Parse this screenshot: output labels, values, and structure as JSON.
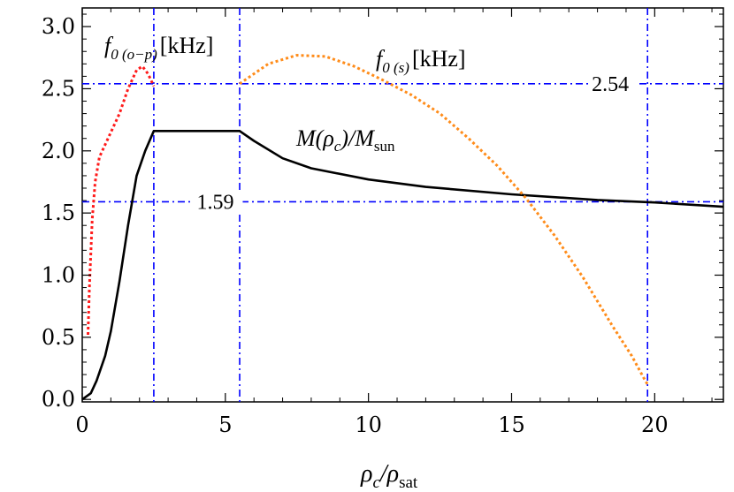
{
  "chart_data": {
    "type": "line",
    "xlabel": "ρc/ρsat",
    "ylabel": "",
    "xlim": [
      0,
      22.4
    ],
    "ylim": [
      -0.02,
      3.15
    ],
    "x_ticks": [
      0,
      5,
      10,
      15,
      20
    ],
    "x_tick_labels": [
      "0",
      "5",
      "10",
      "15",
      "20"
    ],
    "y_ticks": [
      0.0,
      0.5,
      1.0,
      1.5,
      2.0,
      2.5,
      3.0
    ],
    "y_tick_labels": [
      "0.0",
      "0.5",
      "1.0",
      "1.5",
      "2.0",
      "2.5",
      "3.0"
    ],
    "grid": false,
    "series": [
      {
        "name": "M(ρc)/Msun",
        "color": "#000000",
        "style": "solid",
        "x": [
          0.0,
          0.3,
          0.5,
          0.8,
          1.0,
          1.3,
          1.6,
          1.9,
          2.2,
          2.5,
          3.0,
          4.0,
          5.0,
          5.5,
          6.0,
          7.0,
          8.0,
          10.0,
          12.0,
          15.0,
          18.0,
          20.0,
          22.4
        ],
        "y": [
          0.0,
          0.05,
          0.15,
          0.35,
          0.55,
          0.95,
          1.4,
          1.8,
          2.0,
          2.16,
          2.16,
          2.16,
          2.16,
          2.16,
          2.08,
          1.94,
          1.86,
          1.77,
          1.71,
          1.65,
          1.605,
          1.585,
          1.55
        ]
      },
      {
        "name": "f0(o−p) [kHz]",
        "color": "#ff1a1a",
        "style": "dotted",
        "x": [
          0.2,
          0.25,
          0.35,
          0.45,
          0.6,
          0.8,
          1.0,
          1.3,
          1.6,
          1.9,
          2.1,
          2.3,
          2.5
        ],
        "y": [
          0.52,
          0.9,
          1.45,
          1.75,
          1.95,
          2.05,
          2.15,
          2.3,
          2.5,
          2.65,
          2.68,
          2.62,
          2.52
        ]
      },
      {
        "name": "f0(s) [kHz]",
        "color": "#ff8c1a",
        "style": "dotted",
        "x": [
          5.5,
          6.5,
          7.5,
          8.5,
          9.5,
          10.5,
          11.5,
          12.5,
          13.5,
          14.5,
          15.5,
          16.5,
          17.5,
          18.5,
          19.2,
          19.6,
          19.75
        ],
        "y": [
          2.54,
          2.7,
          2.77,
          2.76,
          2.68,
          2.57,
          2.45,
          2.3,
          2.1,
          1.88,
          1.62,
          1.32,
          0.98,
          0.6,
          0.35,
          0.18,
          0.12
        ]
      }
    ],
    "reference_lines": {
      "color": "#0000ff",
      "style": "dash-dot",
      "vertical_x": [
        2.5,
        5.5,
        19.75
      ],
      "horizontal_y": [
        2.54,
        1.59
      ]
    },
    "annotations": [
      {
        "text": "2.54",
        "x": 17.8,
        "y": 2.54
      },
      {
        "text": "1.59",
        "x": 4.0,
        "y": 1.59
      }
    ],
    "labels": {
      "f_op": {
        "base": "f",
        "sub": "0 (o−p)",
        "unit": "[kHz]"
      },
      "f_s": {
        "base": "f",
        "sub": "0 (s)",
        "unit": "[kHz]"
      },
      "mass": {
        "base": "M(ρ",
        "sub1": "c",
        "mid": ")/M",
        "sub2": "sun"
      },
      "xaxis": {
        "base": "ρ",
        "sub1": "c",
        "mid": "/ρ",
        "sub2": "sat"
      }
    }
  }
}
